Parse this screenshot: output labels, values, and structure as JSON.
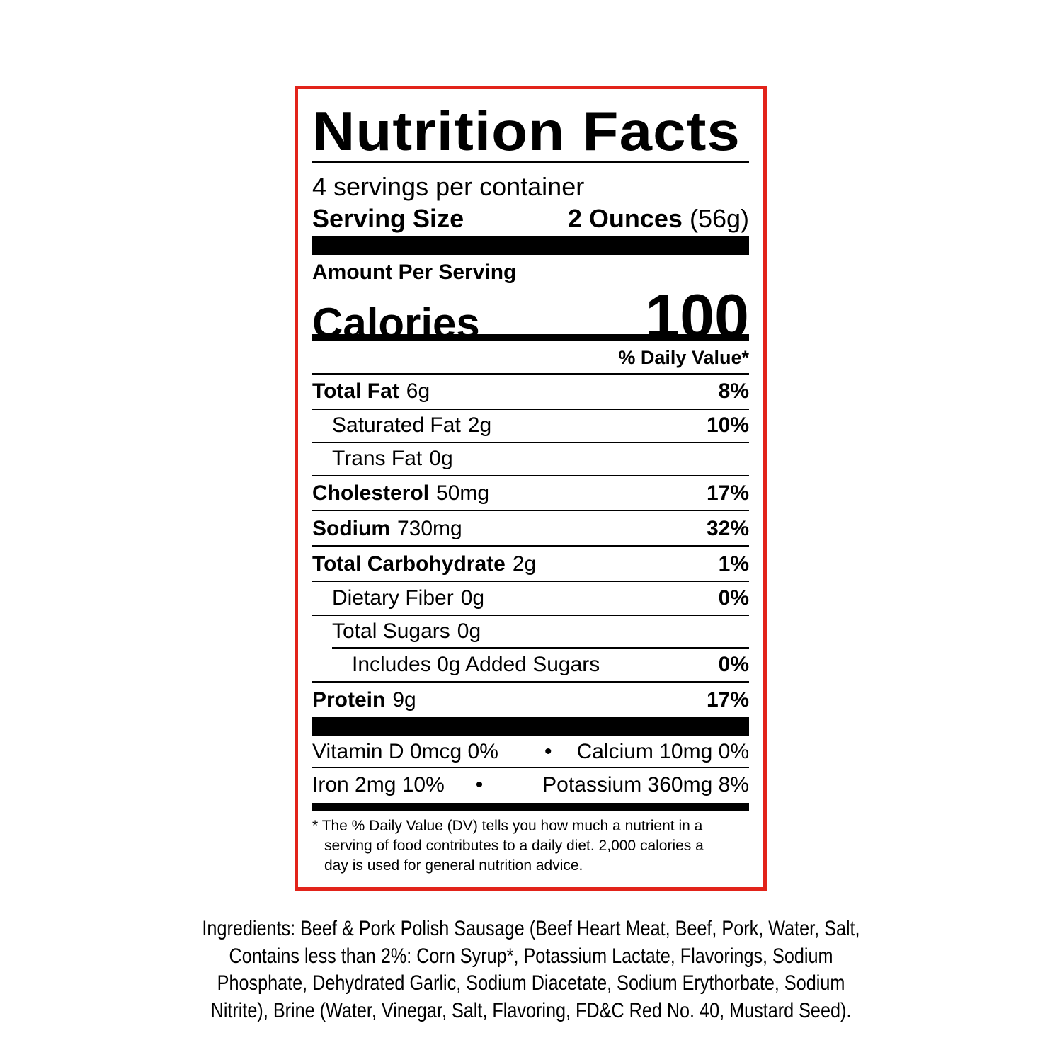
{
  "colors": {
    "border": "#e2231a",
    "text": "#000000"
  },
  "title": "Nutrition Facts",
  "servings_per_container": "4 servings per container",
  "serving_size": {
    "label": "Serving Size",
    "amount": "2 Ounces",
    "grams": "(56g)"
  },
  "amount_per_serving": "Amount Per Serving",
  "calories": {
    "label": "Calories",
    "value": "100"
  },
  "daily_value_header": "% Daily Value*",
  "nutrients": [
    {
      "name": "Total Fat",
      "amount": "6g",
      "dv": "8%"
    },
    {
      "name": "Saturated Fat",
      "amount": "2g",
      "dv": "10%"
    },
    {
      "name": "Trans Fat",
      "amount": "0g",
      "dv": ""
    },
    {
      "name": "Cholesterol",
      "amount": "50mg",
      "dv": "17%"
    },
    {
      "name": "Sodium",
      "amount": "730mg",
      "dv": "32%"
    },
    {
      "name": "Total Carbohydrate",
      "amount": "2g",
      "dv": "1%"
    },
    {
      "name": "Dietary Fiber",
      "amount": "0g",
      "dv": "0%"
    },
    {
      "name": "Total Sugars",
      "amount": "0g",
      "dv": ""
    },
    {
      "name": "Includes 0g Added Sugars",
      "amount": "",
      "dv": "0%"
    },
    {
      "name": "Protein",
      "amount": "9g",
      "dv": "17%"
    }
  ],
  "vitamins": [
    {
      "left": "Vitamin D 0mcg 0%",
      "right": "Calcium 10mg 0%"
    },
    {
      "left": "Iron 2mg 10%",
      "right": "Potassium 360mg 8%"
    }
  ],
  "bullet": "•",
  "footnote": [
    "* The % Daily Value (DV) tells you how much a nutrient in a",
    "serving of food contributes to a daily diet. 2,000 calories a",
    "day is used for general nutrition advice."
  ],
  "ingredients": [
    "Ingredients: Beef & Pork Polish Sausage (Beef Heart Meat, Beef, Pork, Water, Salt,",
    "Contains less than 2%: Corn Syrup*, Potassium Lactate, Flavorings, Sodium",
    "Phosphate, Dehydrated Garlic, Sodium Diacetate, Sodium Erythorbate, Sodium",
    "Nitrite), Brine (Water, Vinegar, Salt, Flavoring, FD&C Red No. 40, Mustard Seed)."
  ]
}
